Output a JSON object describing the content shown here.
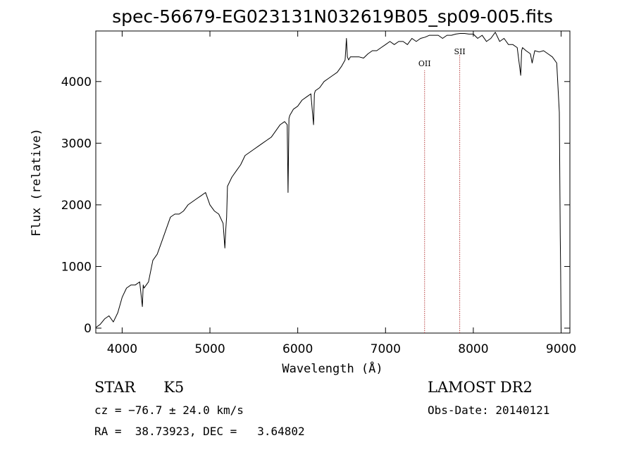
{
  "chart_data": {
    "type": "line",
    "title": "spec-56679-EG023131N032619B05_sp09-005.fits",
    "xlabel": "Wavelength (Å)",
    "ylabel": "Flux (relative)",
    "xlim": [
      3700,
      9100
    ],
    "ylim": [
      -80,
      4820
    ],
    "xticks": [
      4000,
      5000,
      6000,
      7000,
      8000,
      9000
    ],
    "yticks": [
      0,
      1000,
      2000,
      3000,
      4000
    ],
    "grid": false,
    "series": [
      {
        "color": "#000000",
        "x": [
          3700,
          3750,
          3800,
          3850,
          3900,
          3950,
          4000,
          4050,
          4100,
          4150,
          4200,
          4230,
          4240,
          4250,
          4300,
          4350,
          4400,
          4450,
          4500,
          4550,
          4600,
          4650,
          4700,
          4750,
          4800,
          4850,
          4900,
          4950,
          5000,
          5050,
          5100,
          5150,
          5170,
          5180,
          5190,
          5200,
          5250,
          5300,
          5350,
          5400,
          5450,
          5500,
          5550,
          5600,
          5650,
          5700,
          5750,
          5800,
          5850,
          5880,
          5890,
          5900,
          5910,
          5950,
          6000,
          6050,
          6100,
          6150,
          6180,
          6190,
          6200,
          6250,
          6300,
          6350,
          6400,
          6450,
          6500,
          6540,
          6555,
          6565,
          6580,
          6600,
          6650,
          6700,
          6750,
          6800,
          6850,
          6900,
          6950,
          7000,
          7050,
          7100,
          7150,
          7200,
          7250,
          7300,
          7350,
          7400,
          7450,
          7500,
          7550,
          7600,
          7650,
          7700,
          7750,
          7800,
          7850,
          7900,
          7950,
          8000,
          8050,
          8100,
          8150,
          8200,
          8250,
          8300,
          8350,
          8400,
          8450,
          8500,
          8540,
          8550,
          8560,
          8600,
          8650,
          8670,
          8700,
          8750,
          8800,
          8850,
          8900,
          8950,
          8980,
          8990,
          8995,
          9000
        ],
        "y": [
          10,
          60,
          150,
          200,
          100,
          250,
          500,
          650,
          700,
          700,
          750,
          350,
          700,
          650,
          750,
          1100,
          1200,
          1400,
          1600,
          1800,
          1850,
          1850,
          1900,
          2000,
          2050,
          2100,
          2150,
          2200,
          2000,
          1900,
          1850,
          1700,
          1300,
          1600,
          1800,
          2300,
          2450,
          2550,
          2650,
          2800,
          2850,
          2900,
          2950,
          3000,
          3050,
          3100,
          3200,
          3300,
          3350,
          3300,
          2200,
          3400,
          3450,
          3550,
          3600,
          3700,
          3750,
          3800,
          3300,
          3800,
          3850,
          3900,
          4000,
          4050,
          4100,
          4150,
          4250,
          4350,
          4700,
          4400,
          4350,
          4400,
          4400,
          4400,
          4380,
          4450,
          4500,
          4500,
          4550,
          4600,
          4650,
          4600,
          4650,
          4650,
          4600,
          4700,
          4650,
          4700,
          4720,
          4750,
          4750,
          4750,
          4700,
          4750,
          4750,
          4770,
          4780,
          4780,
          4770,
          4770,
          4700,
          4750,
          4650,
          4700,
          4800,
          4650,
          4700,
          4600,
          4600,
          4550,
          4100,
          4500,
          4550,
          4500,
          4450,
          4300,
          4500,
          4480,
          4500,
          4450,
          4400,
          4300,
          3500,
          1500,
          900,
          -50
        ]
      }
    ],
    "annotations": [
      {
        "x": 7445,
        "label": "OII",
        "color": "#b84040"
      },
      {
        "x": 7845,
        "label": "SII",
        "color": "#b84040"
      }
    ]
  },
  "info": {
    "class_label": "STAR",
    "subclass": "K5",
    "survey": "LAMOST DR2",
    "redshift": "cz = −76.7 ± 24.0 km/s",
    "obs_date": "Obs-Date: 20140121",
    "coords": "RA =  38.73923, DEC =   3.64802"
  }
}
